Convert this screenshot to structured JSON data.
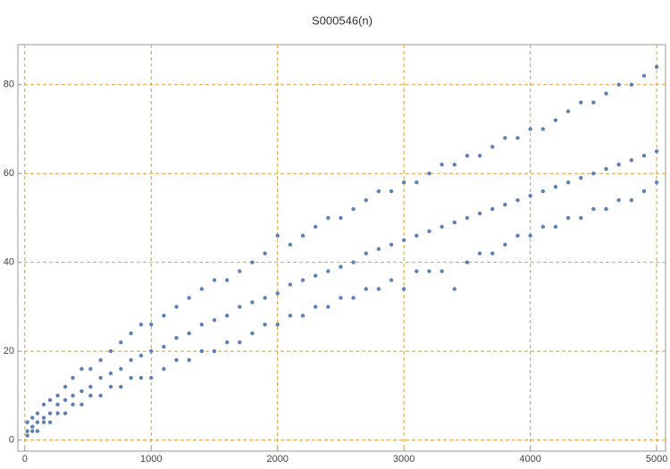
{
  "chart_data": {
    "type": "scatter",
    "title": "S000546(n)",
    "x": [
      20,
      20,
      20,
      60,
      60,
      60,
      100,
      100,
      100,
      150,
      150,
      150,
      200,
      200,
      200,
      260,
      260,
      260,
      320,
      320,
      320,
      380,
      380,
      380,
      450,
      450,
      450,
      520,
      520,
      520,
      600,
      600,
      600,
      680,
      680,
      680,
      760,
      760,
      760,
      840,
      840,
      840,
      920,
      920,
      920,
      1000,
      1000,
      1000,
      1100,
      1100,
      1100,
      1200,
      1200,
      1200,
      1300,
      1300,
      1300,
      1400,
      1400,
      1400,
      1500,
      1500,
      1500,
      1600,
      1600,
      1600,
      1700,
      1700,
      1700,
      1800,
      1800,
      1800,
      1900,
      1900,
      1900,
      2000,
      2000,
      2000,
      2100,
      2100,
      2100,
      2200,
      2200,
      2200,
      2300,
      2300,
      2300,
      2400,
      2400,
      2400,
      2500,
      2500,
      2500,
      2600,
      2600,
      2600,
      2700,
      2700,
      2700,
      2800,
      2800,
      2800,
      2900,
      2900,
      2900,
      3000,
      3000,
      3000,
      3100,
      3100,
      3100,
      3200,
      3200,
      3200,
      3300,
      3300,
      3300,
      3400,
      3400,
      3400,
      3500,
      3500,
      3500,
      3600,
      3600,
      3600,
      3700,
      3700,
      3700,
      3800,
      3800,
      3800,
      3900,
      3900,
      3900,
      4000,
      4000,
      4000,
      4100,
      4100,
      4100,
      4200,
      4200,
      4200,
      4300,
      4300,
      4300,
      4400,
      4400,
      4400,
      4500,
      4500,
      4500,
      4600,
      4600,
      4600,
      4700,
      4700,
      4700,
      4800,
      4800,
      4800,
      4900,
      4900,
      4900,
      5000,
      5000,
      5000
    ],
    "values": [
      2,
      1,
      4,
      3,
      2,
      5,
      4,
      2,
      6,
      5,
      4,
      8,
      6,
      4,
      9,
      8,
      6,
      10,
      9,
      6,
      12,
      10,
      8,
      14,
      11,
      8,
      16,
      12,
      10,
      16,
      14,
      10,
      18,
      15,
      12,
      20,
      16,
      12,
      22,
      18,
      14,
      24,
      19,
      14,
      26,
      20,
      14,
      26,
      21,
      16,
      28,
      23,
      18,
      30,
      24,
      18,
      32,
      26,
      20,
      34,
      27,
      20,
      36,
      28,
      22,
      36,
      30,
      22,
      38,
      31,
      24,
      40,
      32,
      26,
      42,
      33,
      26,
      46,
      35,
      28,
      44,
      36,
      28,
      46,
      37,
      30,
      48,
      38,
      30,
      50,
      39,
      32,
      50,
      40,
      32,
      52,
      42,
      34,
      54,
      43,
      34,
      56,
      44,
      36,
      56,
      45,
      34,
      58,
      46,
      38,
      58,
      47,
      38,
      60,
      48,
      38,
      62,
      49,
      34,
      62,
      50,
      40,
      64,
      51,
      42,
      64,
      52,
      42,
      66,
      53,
      44,
      68,
      54,
      46,
      68,
      55,
      46,
      70,
      56,
      48,
      70,
      57,
      48,
      72,
      58,
      50,
      74,
      59,
      50,
      76,
      60,
      52,
      76,
      61,
      52,
      78,
      62,
      54,
      80,
      63,
      54,
      80,
      64,
      56,
      82,
      65,
      58,
      84
    ],
    "color": "#5e81b5",
    "xlim": [
      -55,
      5070
    ],
    "ylim": [
      -2.5,
      89
    ],
    "xticks": [
      0,
      1000,
      2000,
      3000,
      4000,
      5000
    ],
    "yticks": [
      0,
      20,
      40,
      60,
      80
    ],
    "grid": true
  }
}
